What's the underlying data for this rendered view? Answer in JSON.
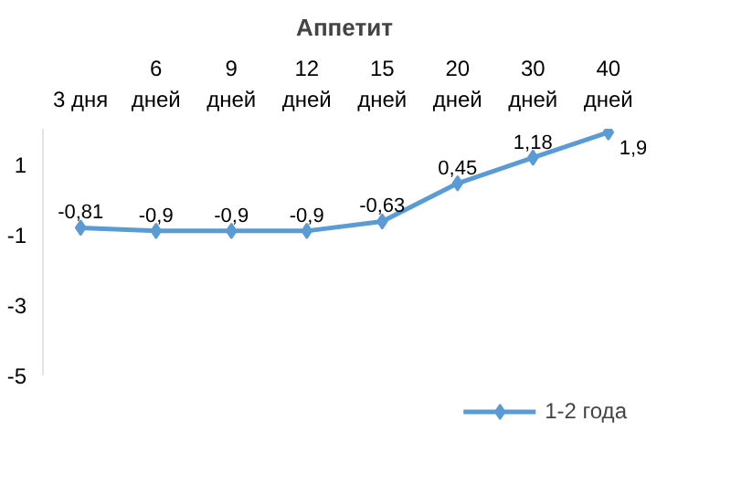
{
  "chart_data": {
    "type": "line",
    "title": "Аппетит",
    "categories": [
      "3 дня",
      "6\nдней",
      "9\nдней",
      "12\nдней",
      "15\nдней",
      "20\nдней",
      "30\nдней",
      "40\nдней"
    ],
    "series": [
      {
        "name": "1-2 года",
        "color": "#5b9bd5",
        "values": [
          -0.81,
          -0.9,
          -0.9,
          -0.9,
          -0.63,
          0.45,
          1.18,
          1.9
        ],
        "value_labels": [
          "-0,81",
          "-0,9",
          "-0,9",
          "-0,9",
          "-0,63",
          "0,45",
          "1,18",
          "1,9"
        ]
      }
    ],
    "ylim": [
      -5,
      2
    ],
    "yticks": [
      1,
      -1,
      -3,
      -5
    ],
    "marker": "diamond",
    "legend": "bottom"
  }
}
